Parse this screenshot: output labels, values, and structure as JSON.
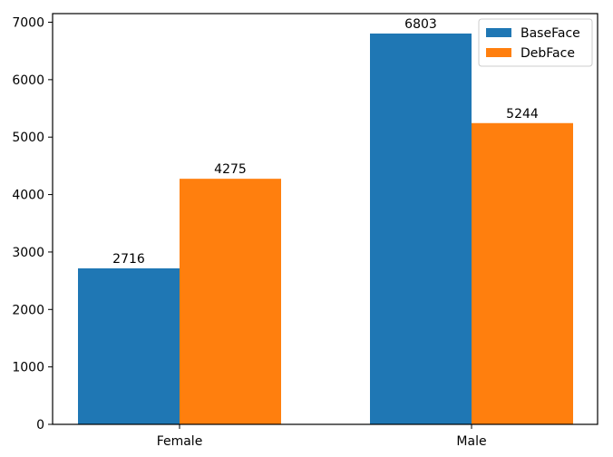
{
  "chart_data": {
    "type": "bar",
    "title": "",
    "xlabel": "",
    "ylabel": "",
    "categories": [
      "Female",
      "Male"
    ],
    "series": [
      {
        "name": "BaseFace",
        "color": "#1f77b4",
        "values": [
          2716,
          6803
        ]
      },
      {
        "name": "DebFace",
        "color": "#ff7f0e",
        "values": [
          4275,
          5244
        ]
      }
    ],
    "ylim": [
      0,
      7150
    ],
    "yticks": [
      0,
      1000,
      2000,
      3000,
      4000,
      5000,
      6000,
      7000
    ],
    "data_labels": true,
    "grid": false,
    "legend_position": "top-right"
  }
}
